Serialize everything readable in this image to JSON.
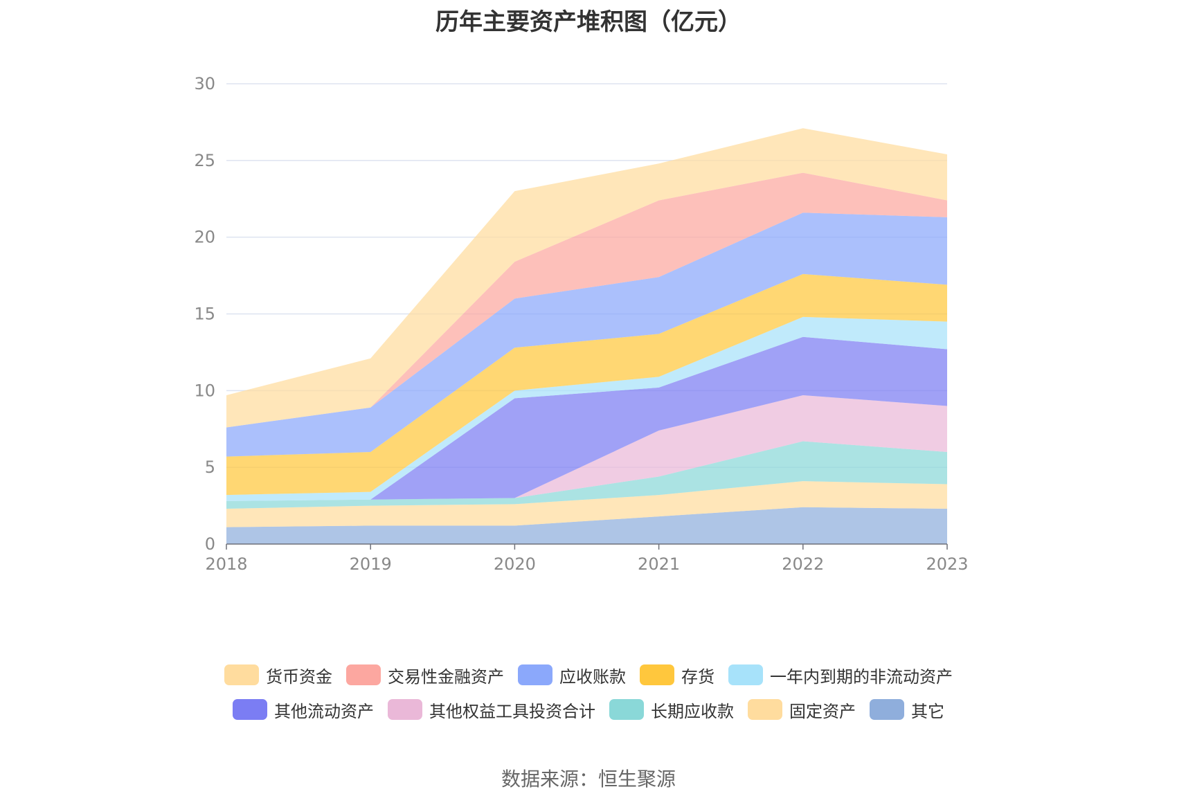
{
  "chart_data": {
    "type": "area",
    "stacked": true,
    "title": "历年主要资产堆积图（亿元）",
    "categories": [
      "2018",
      "2019",
      "2020",
      "2021",
      "2022",
      "2023"
    ],
    "ylim": [
      0,
      30
    ],
    "yticks": [
      "0",
      "5",
      "10",
      "15",
      "20",
      "25",
      "30"
    ],
    "grid": true,
    "legend_position": "bottom",
    "series": [
      {
        "name": "其它",
        "color": "#8FAEDC",
        "values": [
          1.1,
          1.2,
          1.2,
          1.8,
          2.4,
          2.3
        ]
      },
      {
        "name": "固定资产",
        "color": "#FFDC9E",
        "values": [
          1.2,
          1.3,
          1.4,
          1.4,
          1.7,
          1.6
        ]
      },
      {
        "name": "长期应收款",
        "color": "#8AD8D8",
        "values": [
          0.5,
          0.4,
          0.4,
          1.2,
          2.6,
          2.1
        ]
      },
      {
        "name": "其他权益工具投资合计",
        "color": "#EAB8D8",
        "values": [
          0,
          0,
          0,
          3.0,
          3.0,
          3.0
        ]
      },
      {
        "name": "其他流动资产",
        "color": "#7B7DF3",
        "values": [
          0,
          0,
          6.5,
          2.8,
          3.8,
          3.7
        ]
      },
      {
        "name": "一年内到期的非流动资产",
        "color": "#A7E2FA",
        "values": [
          0.4,
          0.5,
          0.5,
          0.7,
          1.3,
          1.8
        ]
      },
      {
        "name": "存货",
        "color": "#FFC73D",
        "values": [
          2.5,
          2.6,
          2.8,
          2.8,
          2.8,
          2.4
        ]
      },
      {
        "name": "应收账款",
        "color": "#8BA8FB",
        "values": [
          1.9,
          2.9,
          3.2,
          3.7,
          4.0,
          4.4
        ]
      },
      {
        "name": "交易性金融资产",
        "color": "#FCA7A0",
        "values": [
          0,
          0,
          2.4,
          5.0,
          2.6,
          1.1
        ]
      },
      {
        "name": "货币资金",
        "color": "#FFDC9E",
        "values": [
          2.1,
          3.2,
          4.6,
          2.4,
          2.9,
          3.0
        ]
      }
    ]
  },
  "legend": {
    "row1": [
      {
        "label": "货币资金",
        "color": "#FFDC9E"
      },
      {
        "label": "交易性金融资产",
        "color": "#FCA7A0"
      },
      {
        "label": "应收账款",
        "color": "#8BA8FB"
      },
      {
        "label": "存货",
        "color": "#FFC73D"
      },
      {
        "label": "一年内到期的非流动资产",
        "color": "#A7E2FA"
      }
    ],
    "row2": [
      {
        "label": "其他流动资产",
        "color": "#7B7DF3"
      },
      {
        "label": "其他权益工具投资合计",
        "color": "#EAB8D8"
      },
      {
        "label": "长期应收款",
        "color": "#8AD8D8"
      },
      {
        "label": "固定资产",
        "color": "#FFDC9E"
      },
      {
        "label": "其它",
        "color": "#8FAEDC"
      }
    ]
  },
  "source": "数据来源：恒生聚源"
}
